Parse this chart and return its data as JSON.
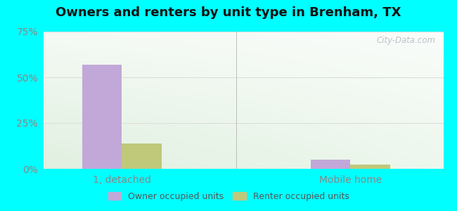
{
  "title": "Owners and renters by unit type in Brenham, TX",
  "categories": [
    "1, detached",
    "Mobile home"
  ],
  "owner_values": [
    0.57,
    0.05
  ],
  "renter_values": [
    0.14,
    0.022
  ],
  "owner_color": "#c2a8d8",
  "renter_color": "#c0c87a",
  "ylim": [
    0,
    0.75
  ],
  "yticks": [
    0.0,
    0.25,
    0.5,
    0.75
  ],
  "ytick_labels": [
    "0%",
    "25%",
    "50%",
    "75%"
  ],
  "outer_color": "#00ffff",
  "bar_width": 0.28,
  "legend_owner": "Owner occupied units",
  "legend_renter": "Renter occupied units",
  "title_fontsize": 13,
  "tick_color": "#888888",
  "watermark": "City-Data.com",
  "grid_color": "#dddddd",
  "bg_left": "#d8ecd8",
  "bg_right": "#e8f5ee"
}
